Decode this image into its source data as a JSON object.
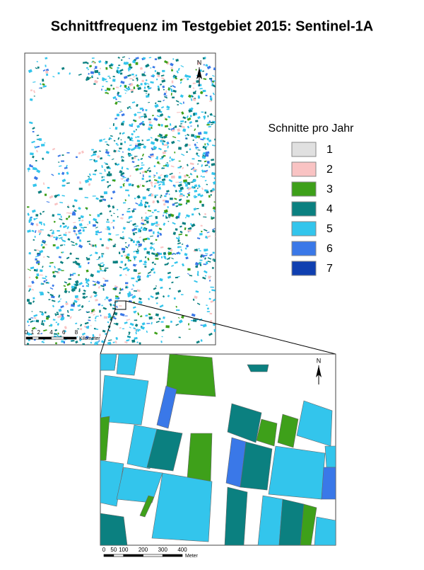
{
  "title": "Schnittfrequenz im Testgebiet 2015: Sentinel-1A",
  "legend": {
    "title": "Schnitte pro Jahr",
    "items": [
      {
        "label": "1",
        "color": "#e0e0e0"
      },
      {
        "label": "2",
        "color": "#f9c3c3"
      },
      {
        "label": "3",
        "color": "#3ea01a"
      },
      {
        "label": "4",
        "color": "#0b8080"
      },
      {
        "label": "5",
        "color": "#33c5ec"
      },
      {
        "label": "6",
        "color": "#3a78e8"
      },
      {
        "label": "7",
        "color": "#0f3fb0"
      }
    ]
  },
  "north_label": "N",
  "overview_scale": {
    "ticks": [
      0,
      1,
      2,
      4,
      6,
      8
    ],
    "unit": "Kilometer"
  },
  "detail_scale": {
    "ticks": [
      0,
      50,
      100,
      200,
      300,
      400
    ],
    "unit": "Meter"
  }
}
